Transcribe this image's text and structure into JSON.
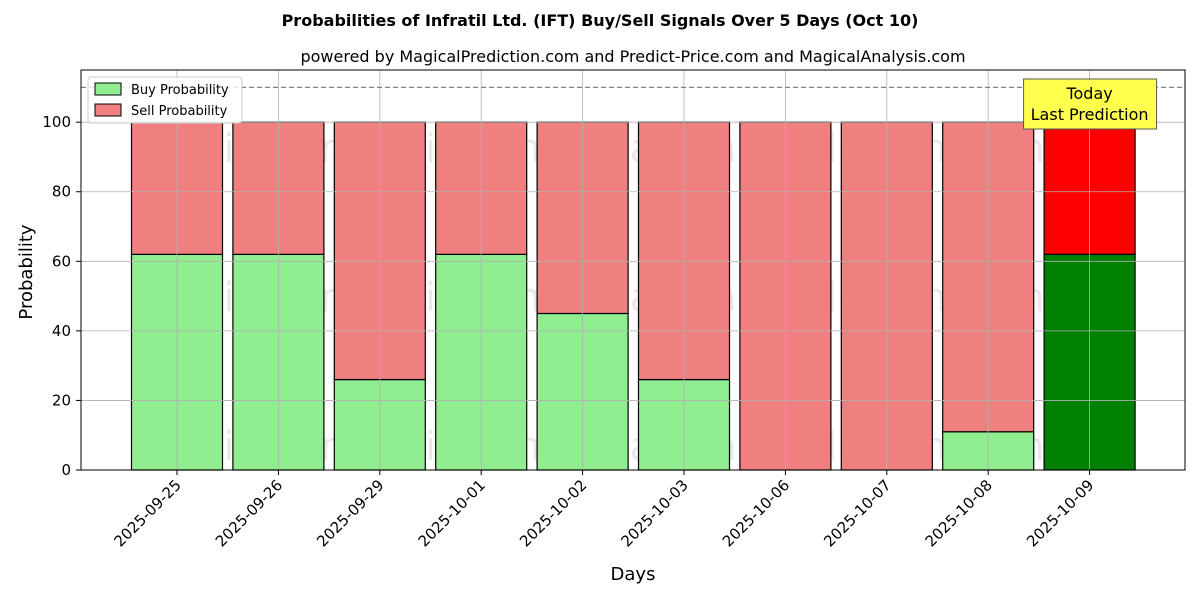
{
  "chart_data": {
    "type": "bar",
    "stacked": true,
    "title": "Probabilities of Infratil Ltd. (IFT) Buy/Sell Signals Over 5 Days (Oct 10)",
    "subtitle": "powered by MagicalPrediction.com and Predict-Price.com and MagicalAnalysis.com",
    "xlabel": "Days",
    "ylabel": "Probability",
    "ylim": [
      0,
      115
    ],
    "yticks": [
      0,
      20,
      40,
      60,
      80,
      100
    ],
    "grid": true,
    "legend_position": "top-left",
    "categories": [
      "2025-09-25",
      "2025-09-26",
      "2025-09-29",
      "2025-10-01",
      "2025-10-02",
      "2025-10-03",
      "2025-10-06",
      "2025-10-07",
      "2025-10-08",
      "2025-10-09"
    ],
    "series": [
      {
        "name": "Buy Probability",
        "color": "#90ee90",
        "highlight_color": "#008000",
        "values": [
          62,
          62,
          26,
          62,
          45,
          26,
          0,
          0,
          11,
          62
        ]
      },
      {
        "name": "Sell Probability",
        "color": "#f08080",
        "highlight_color": "#ff0000",
        "values": [
          38,
          38,
          74,
          38,
          55,
          74,
          100,
          100,
          89,
          38
        ]
      }
    ],
    "highlight_index": 9,
    "reference_line": {
      "y": 110,
      "style": "dashed",
      "color": "#808080"
    },
    "annotation": {
      "lines": [
        "Today",
        "Last Prediction"
      ],
      "background": "#ffff4d"
    },
    "watermarks": [
      "MagicalAnalysis.com",
      "MagicalPrediction.com"
    ]
  }
}
